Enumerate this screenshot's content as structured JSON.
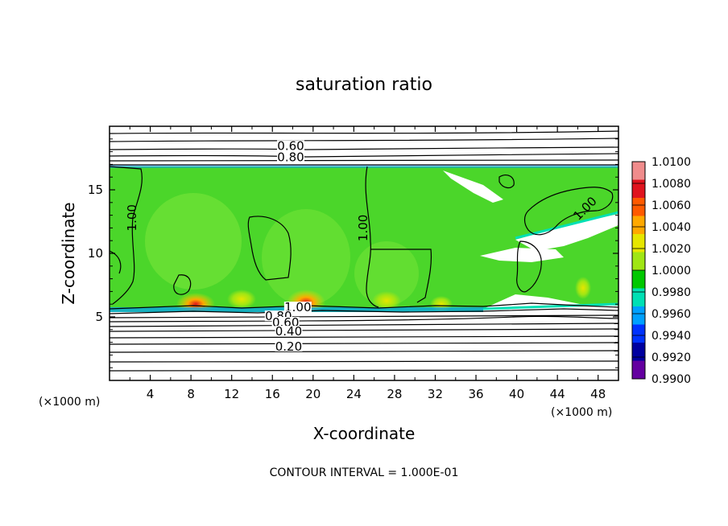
{
  "chart_data": {
    "type": "heatmap",
    "title": "saturation ratio",
    "xlabel": "X-coordinate",
    "ylabel": "Z-coordinate",
    "x_unit": "(×1000 m)",
    "y_unit": "(×1000 m)",
    "xlim": [
      0,
      50
    ],
    "ylim": [
      0,
      20
    ],
    "x_ticks": [
      4,
      8,
      12,
      16,
      20,
      24,
      28,
      32,
      36,
      40,
      44,
      48
    ],
    "y_ticks": [
      5,
      10,
      15
    ],
    "colorbar": {
      "labels": [
        "1.0100",
        "1.0080",
        "1.0060",
        "1.0040",
        "1.0020",
        "1.0000",
        "0.9980",
        "0.9960",
        "0.9940",
        "0.9920",
        "0.9900"
      ],
      "colors": [
        "#f08c8c",
        "#e0141e",
        "#ff5a00",
        "#ffa800",
        "#e6e600",
        "#a0e614",
        "#00c800",
        "#00e0b4",
        "#00a0ff",
        "#0032ff",
        "#0000a0",
        "#6400a0"
      ]
    },
    "contour_labels": [
      {
        "text": "0.60",
        "x": 17.8,
        "z": 18.2
      },
      {
        "text": "0.80",
        "x": 17.8,
        "z": 17.3
      },
      {
        "text": "1.00",
        "x": 2.6,
        "z": 12.8
      },
      {
        "text": "1.00",
        "x": 25.3,
        "z": 12.0
      },
      {
        "text": "1.00",
        "x": 47.0,
        "z": 13.3
      },
      {
        "text": "1.00",
        "x": 18.5,
        "z": 5.5
      },
      {
        "text": "0.80",
        "x": 16.6,
        "z": 4.8
      },
      {
        "text": "0.60",
        "x": 17.3,
        "z": 4.3
      },
      {
        "text": "0.40",
        "x": 17.6,
        "z": 3.6
      },
      {
        "text": "0.20",
        "x": 17.6,
        "z": 2.4
      }
    ],
    "contour_interval_note": "CONTOUR INTERVAL = 1.000E-01",
    "grid": false,
    "legend": "colorbar-right"
  }
}
